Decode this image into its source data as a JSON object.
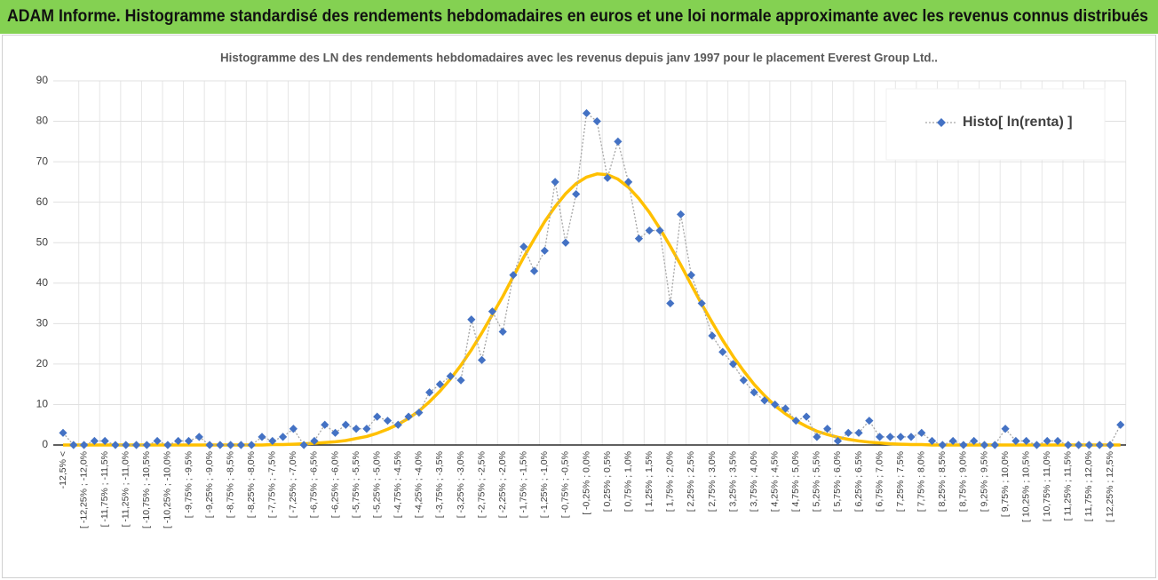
{
  "header": {
    "title": "ADAM Informe. Histogramme standardisé des rendements hebdomadaires en euros et une loi normale approximante avec les revenus connus distribués"
  },
  "chart_data": {
    "type": "line",
    "title": "Histogramme des LN des rendements hebdomadaires avec les revenus depuis janv 1997 pour le placement Everest Group Ltd..",
    "categories": [
      "-12,5% <",
      null,
      "[ -12,25% ; -12,0%",
      null,
      "[ -11,75% ; -11,5%",
      null,
      "[ -11,25% ; -11,0%",
      null,
      "[ -10,75% ; -10,5%",
      null,
      "[ -10,25% ; -10,0%",
      null,
      "[ -9,75% ; -9,5%",
      null,
      "[ -9,25% ; -9,0%",
      null,
      "[ -8,75% ; -8,5%",
      null,
      "[ -8,25% ; -8,0%",
      null,
      "[ -7,75% ; -7,5%",
      null,
      "[ -7,25% ; -7,0%",
      null,
      "[ -6,75% ; -6,5%",
      null,
      "[ -6,25% ; -6,0%",
      null,
      "[ -5,75% ; -5,5%",
      null,
      "[ -5,25% ; -5,0%",
      null,
      "[ -4,75% ; -4,5%",
      null,
      "[ -4,25% ; -4,0%",
      null,
      "[ -3,75% ; -3,5%",
      null,
      "[ -3,25% ; -3,0%",
      null,
      "[ -2,75% ; -2,5%",
      null,
      "[ -2,25% ; -2,0%",
      null,
      "[ -1,75% ; -1,5%",
      null,
      "[ -1,25% ; -1,0%",
      null,
      "[ -0,75% ; -0,5%",
      null,
      "[ -0,25% ; 0,0%",
      null,
      "[ 0,25% ; 0,5%",
      null,
      "[ 0,75% ; 1,0%",
      null,
      "[ 1,25% ; 1,5%",
      null,
      "[ 1,75% ; 2,0%",
      null,
      "[ 2,25% ; 2,5%",
      null,
      "[ 2,75% ; 3,0%",
      null,
      "[ 3,25% ; 3,5%",
      null,
      "[ 3,75% ; 4,0%",
      null,
      "[ 4,25% ; 4,5%",
      null,
      "[ 4,75% ; 5,0%",
      null,
      "[ 5,25% ; 5,5%",
      null,
      "[ 5,75% ; 6,0%",
      null,
      "[ 6,25% ; 6,5%",
      null,
      "[ 6,75% ; 7,0%",
      null,
      "[ 7,25% ; 7,5%",
      null,
      "[ 7,75% ; 8,0%",
      null,
      "[ 8,25% ; 8,5%",
      null,
      "[ 8,75% ; 9,0%",
      null,
      "[ 9,25% ; 9,5%",
      null,
      "[ 9,75% ; 10,0%",
      null,
      "[ 10,25% ; 10,5%",
      null,
      "[ 10,75% ; 11,0%",
      null,
      "[ 11,25% ; 11,5%",
      null,
      "[ 11,75% ; 12,0%",
      null,
      "[ 12,25% ; 12,5%",
      null
    ],
    "series": [
      {
        "name": "Histo[ ln(renta) ]",
        "color": "#4472c4",
        "line_color": "#a6a6a6",
        "values": [
          3,
          0,
          0,
          1,
          1,
          0,
          0,
          0,
          0,
          1,
          0,
          1,
          1,
          2,
          0,
          0,
          0,
          0,
          0,
          2,
          1,
          2,
          4,
          0,
          1,
          5,
          3,
          5,
          4,
          4,
          7,
          6,
          5,
          7,
          8,
          13,
          15,
          17,
          16,
          31,
          21,
          33,
          28,
          42,
          49,
          43,
          48,
          65,
          50,
          62,
          82,
          80,
          66,
          75,
          65,
          51,
          53,
          53,
          35,
          57,
          42,
          35,
          27,
          23,
          20,
          16,
          13,
          11,
          10,
          9,
          6,
          7,
          2,
          4,
          1,
          3,
          3,
          6,
          2,
          2,
          2,
          2,
          3,
          1,
          0,
          1,
          0,
          1,
          0,
          0,
          4,
          1,
          1,
          0,
          1,
          1,
          0,
          0,
          0,
          0,
          0,
          5
        ]
      },
      {
        "color": "#ffc000",
        "values": [
          0,
          0,
          0,
          0,
          0,
          0,
          0,
          0,
          0,
          0,
          0,
          0,
          0,
          0,
          0,
          0,
          0,
          0,
          0,
          0,
          0.1,
          0.1,
          0.2,
          0.3,
          0.4,
          0.6,
          0.8,
          1.1,
          1.6,
          2.1,
          2.9,
          3.9,
          5.1,
          6.6,
          8.4,
          10.7,
          13.3,
          16.3,
          19.7,
          23.5,
          27.7,
          32.2,
          36.7,
          41.6,
          46.4,
          50.9,
          55.2,
          58.9,
          62.1,
          64.6,
          66.2,
          67.0,
          66.8,
          65.7,
          63.7,
          60.9,
          57.5,
          53.5,
          49.1,
          44.5,
          39.6,
          34.8,
          30.3,
          25.9,
          21.9,
          18.3,
          15.0,
          12.2,
          9.7,
          7.7,
          6.0,
          4.6,
          3.4,
          2.6,
          1.9,
          1.4,
          1.0,
          0.7,
          0.5,
          0.3,
          0.2,
          0.1,
          0.1,
          0,
          0,
          0,
          0,
          0,
          0,
          0,
          0,
          0,
          0,
          0,
          0,
          0,
          0,
          0,
          0,
          0,
          0,
          0
        ]
      }
    ],
    "ylim": [
      0,
      90
    ],
    "yticks": [
      0,
      10,
      20,
      30,
      40,
      50,
      60,
      70,
      80,
      90
    ],
    "grid": true,
    "legend": "top-right"
  }
}
